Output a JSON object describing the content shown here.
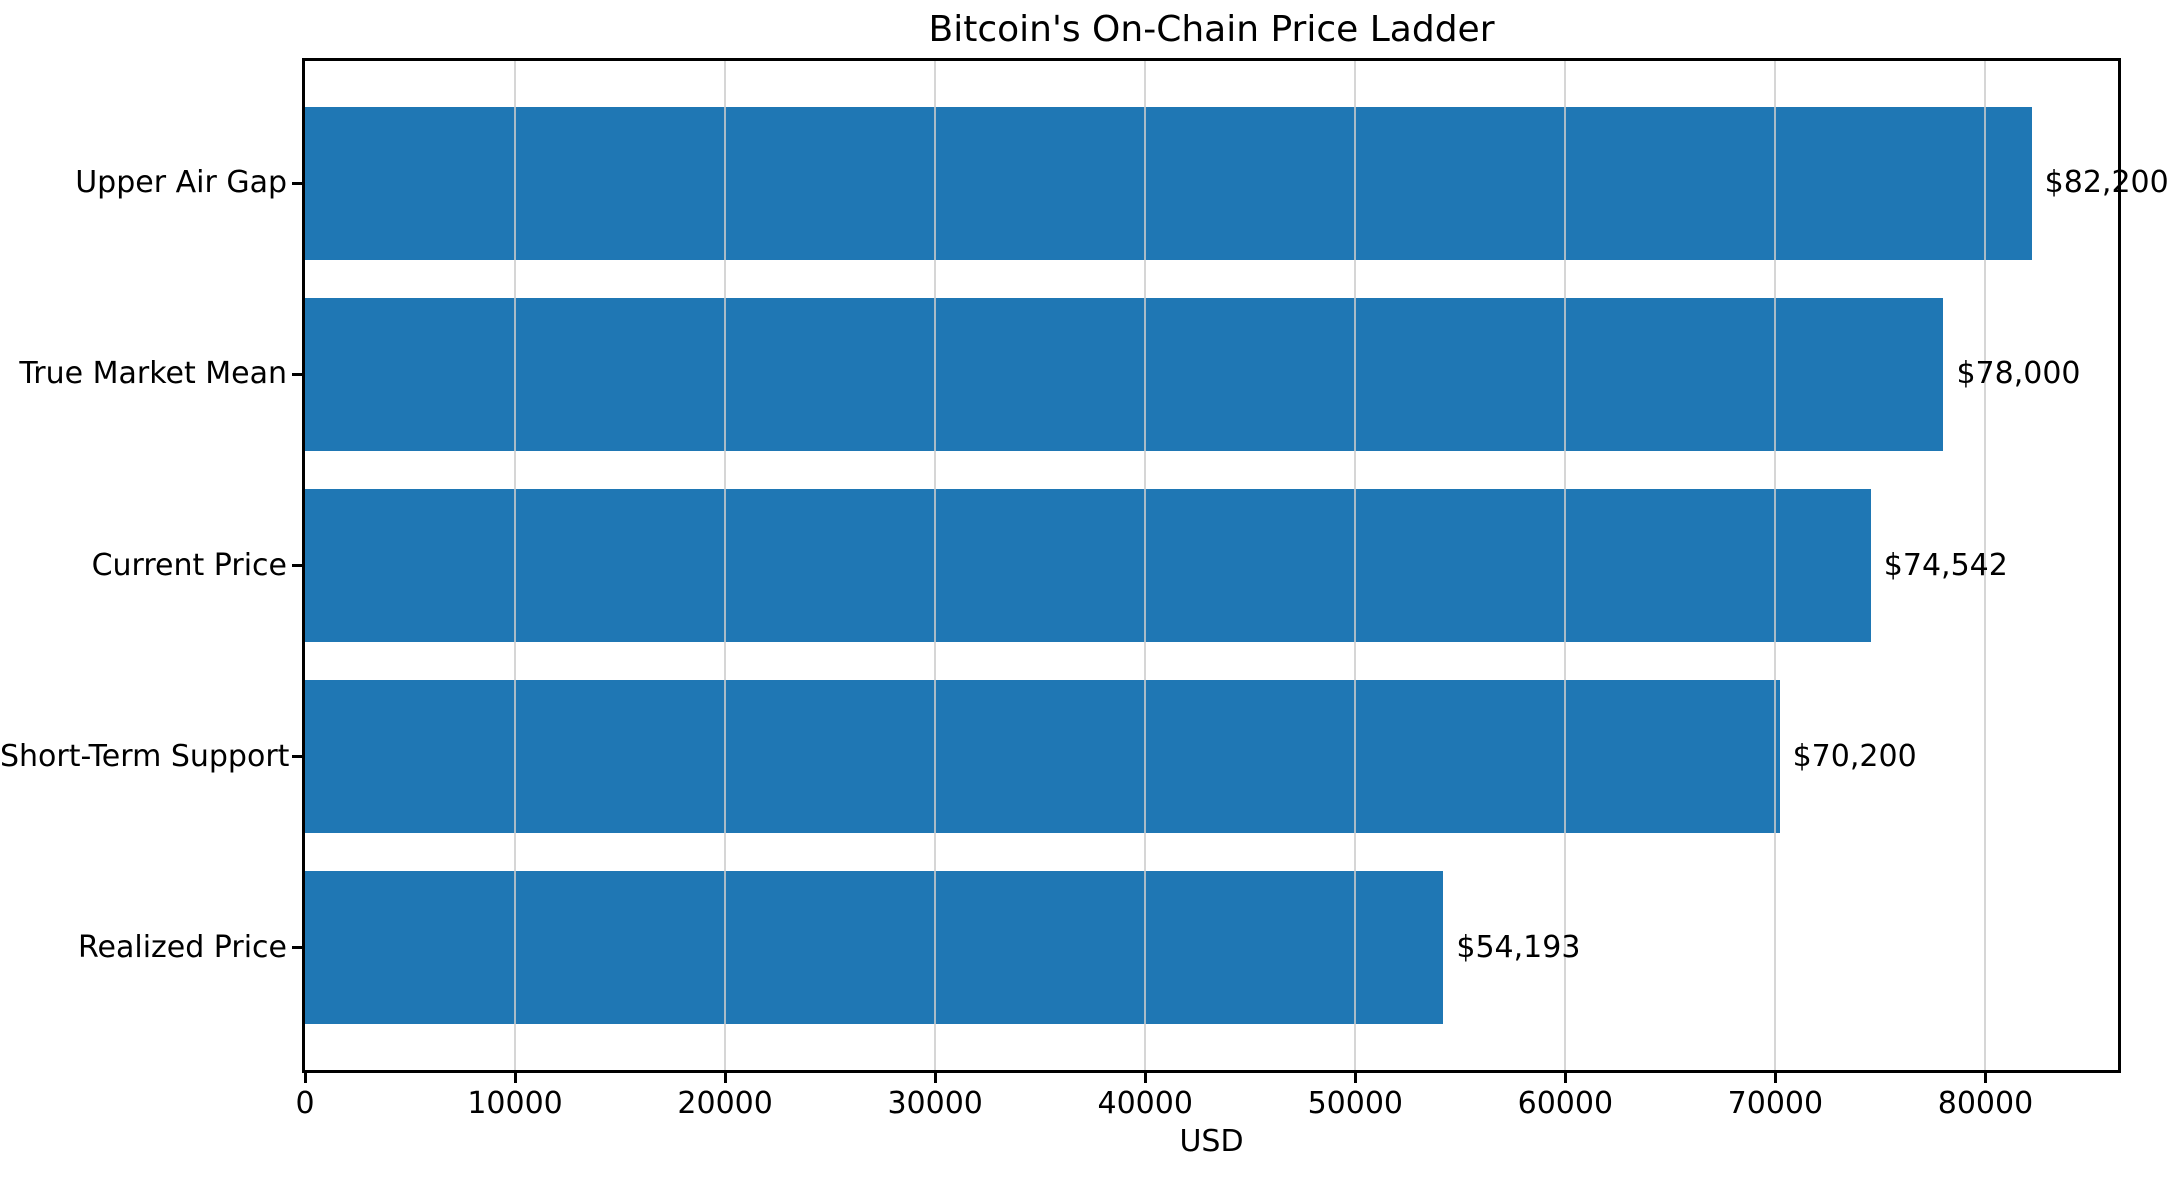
{
  "chart_data": {
    "type": "bar",
    "orientation": "horizontal",
    "title": "Bitcoin's On-Chain Price Ladder",
    "xlabel": "USD",
    "categories": [
      "Upper Air Gap",
      "True Market Mean",
      "Current Price",
      "Short-Term Support",
      "Realized Price"
    ],
    "values": [
      82200,
      78000,
      74542,
      70200,
      54193
    ],
    "value_labels": [
      "$82,200",
      "$78,000",
      "$74,542",
      "$70,200",
      "$54,193"
    ],
    "xticks": [
      0,
      10000,
      20000,
      30000,
      40000,
      50000,
      60000,
      70000,
      80000
    ],
    "xtick_labels": [
      "0",
      "10000",
      "20000",
      "30000",
      "40000",
      "50000",
      "60000",
      "70000",
      "80000"
    ],
    "xlim": [
      0,
      86310
    ],
    "grid": true,
    "grid_axis": "x",
    "legend": false,
    "bar_color": "#1f77b4",
    "gridline_color": "rgba(204,204,204,0.8)",
    "text_color": "#000000"
  }
}
